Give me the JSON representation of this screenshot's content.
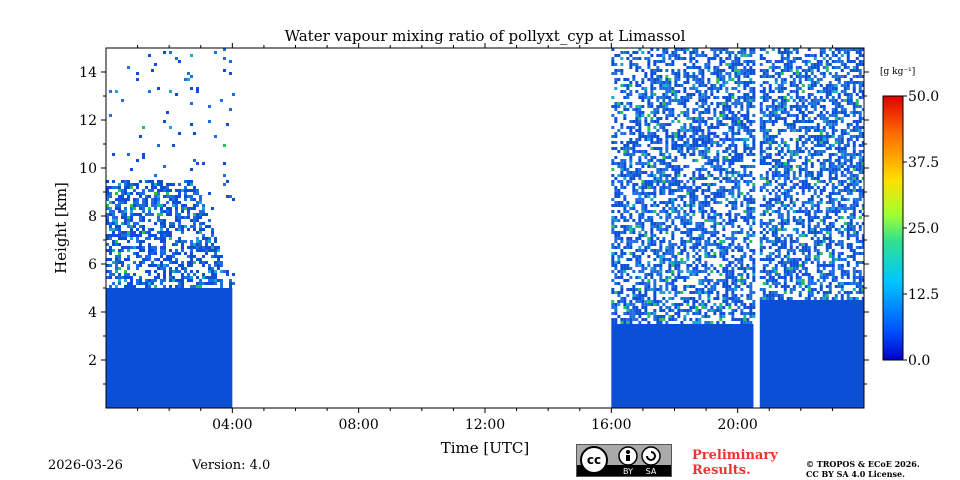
{
  "chart_data": {
    "type": "heatmap",
    "title": "Water vapour mixing ratio of pollyxt_cyp at Limassol",
    "xlabel": "Time [UTC]",
    "ylabel": "Height [km]",
    "x_range_hours": [
      0,
      24
    ],
    "y_range_km": [
      0,
      15
    ],
    "x_tick_labels": [
      "04:00",
      "08:00",
      "12:00",
      "16:00",
      "20:00"
    ],
    "x_tick_hours": [
      4,
      8,
      12,
      16,
      20
    ],
    "y_tick_labels": [
      "2",
      "4",
      "6",
      "8",
      "10",
      "12",
      "14"
    ],
    "y_tick_values": [
      2,
      4,
      6,
      8,
      10,
      12,
      14
    ],
    "colorbar": {
      "unit": "[g kg⁻¹]",
      "range": [
        0,
        50
      ],
      "tick_values": [
        0,
        12.5,
        25,
        37.5,
        50
      ],
      "tick_labels": [
        "0.0",
        "12.5",
        "25.0",
        "37.5",
        "50.0"
      ],
      "colormap": "jet"
    },
    "data_segments": [
      {
        "start_hour": 0.0,
        "end_hour": 4.0,
        "solid_top_km": 5.0,
        "scatter_top_km": 9.5,
        "sparse_top_km": 15.0
      },
      {
        "start_hour": 16.0,
        "end_hour": 20.5,
        "solid_top_km": 3.5,
        "scatter_top_km": 15.0,
        "sparse_top_km": 15.0
      },
      {
        "start_hour": 20.7,
        "end_hour": 24.0,
        "solid_top_km": 4.5,
        "scatter_top_km": 15.0,
        "sparse_top_km": 15.0
      }
    ],
    "typical_value_g_per_kg": 2.0
  },
  "footer": {
    "date": "2026-03-26",
    "version": "Version: 4.0",
    "preliminary_line1": "Preliminary",
    "preliminary_line2": "Results.",
    "copyright_line1": "© TROPOS & ECoE 2026.",
    "copyright_line2": "CC BY SA 4.0 License.",
    "cc_badge_by": "BY",
    "cc_badge_sa": "SA",
    "cc_badge_cc": "cc"
  },
  "colors": {
    "data_blue": "#0a4fd6",
    "data_mid_blue": "#1f6ee0",
    "data_cyan": "#1aa7c9",
    "data_green": "#2bbf57",
    "preliminary_red": "#ee3333"
  }
}
